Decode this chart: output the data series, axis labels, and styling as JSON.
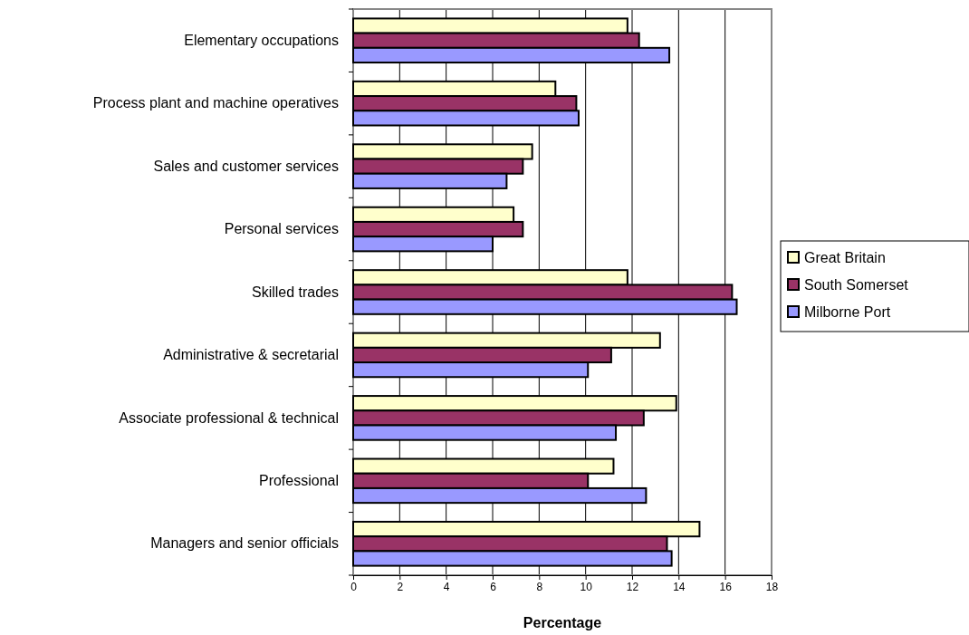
{
  "chart_data": {
    "type": "bar",
    "orientation": "horizontal",
    "xlabel": "Percentage",
    "categories": [
      "Elementary occupations",
      "Process plant and machine operatives",
      "Sales and customer services",
      "Personal services",
      "Skilled trades",
      "Administrative & secretarial",
      "Associate professional & technical",
      "Professional",
      "Managers and senior officials"
    ],
    "series": [
      {
        "name": "Great Britain",
        "color": "#ffffcc",
        "values": [
          11.8,
          8.7,
          7.7,
          6.9,
          11.8,
          13.2,
          13.9,
          11.2,
          14.9
        ]
      },
      {
        "name": "South Somerset",
        "color": "#993366",
        "values": [
          12.3,
          9.6,
          7.3,
          7.3,
          16.3,
          11.1,
          12.5,
          10.1,
          13.5
        ]
      },
      {
        "name": "Milborne Port",
        "color": "#9999ff",
        "values": [
          13.6,
          9.7,
          6.6,
          6.0,
          16.5,
          10.1,
          11.3,
          12.6,
          13.7
        ]
      }
    ],
    "xlim": [
      0,
      18
    ],
    "xticks": [
      0,
      2,
      4,
      6,
      8,
      10,
      12,
      14,
      16,
      18
    ],
    "grid": "x",
    "legend": "right"
  }
}
